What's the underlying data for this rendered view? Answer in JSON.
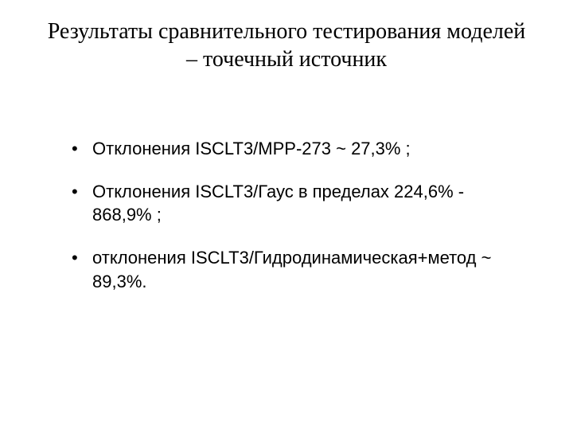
{
  "colors": {
    "background": "#ffffff",
    "text": "#000000"
  },
  "typography": {
    "title_font": "Times New Roman",
    "title_fontsize_pt": 21,
    "body_font": "Arial",
    "body_fontsize_pt": 17
  },
  "title": "Результаты сравнительного тестирования моделей – точечный источник",
  "bullets": [
    {
      "text": "Отклонения ISCLT3/МРР-273  ~ 27,3% ;"
    },
    {
      "text": "Отклонения ISCLT3/Гаус в пределах 224,6%  - 868,9% ;"
    },
    {
      "text": "отклонения ISCLT3/Гидродинамическая+метод ~ 89,3%."
    }
  ]
}
